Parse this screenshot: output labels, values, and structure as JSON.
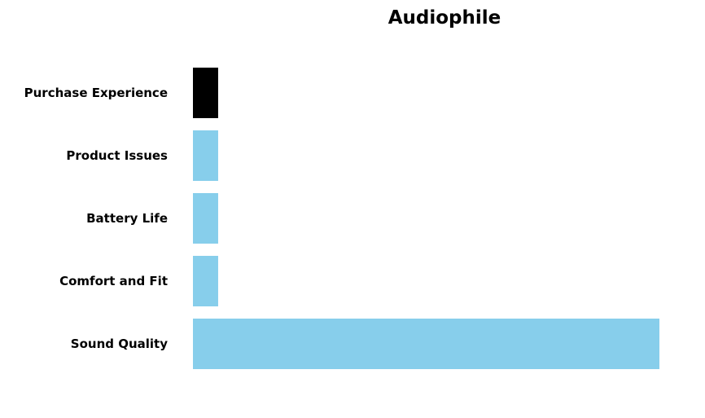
{
  "chart_data": {
    "type": "bar",
    "orientation": "horizontal",
    "title": "Audiophile",
    "xlabel": "",
    "ylabel": "",
    "categories": [
      "Sound Quality",
      "Comfort and Fit",
      "Battery Life",
      "Product Issues",
      "Purchase Experience"
    ],
    "values": [
      37,
      2,
      2,
      2,
      2
    ],
    "xlim": [
      0,
      37
    ],
    "grid": false,
    "axes_visible": false,
    "colors": [
      "#87CEEB",
      "#87CEEB",
      "#87CEEB",
      "#87CEEB",
      "#000000"
    ]
  }
}
